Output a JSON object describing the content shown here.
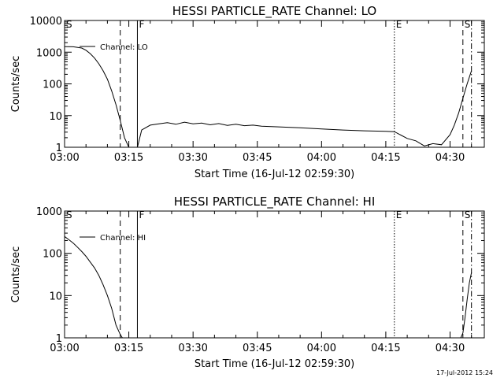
{
  "chart_data": [
    {
      "type": "line",
      "title": "HESSI PARTICLE_RATE Channel: LO",
      "xlabel": "Start Time (16-Jul-12 02:59:30)",
      "ylabel": "Counts/sec",
      "y_scale": "log",
      "xlim": [
        "03:00",
        "04:38"
      ],
      "ylim": [
        1,
        10000
      ],
      "x_ticks": [
        "03:00",
        "03:15",
        "03:30",
        "03:45",
        "04:00",
        "04:15",
        "04:30"
      ],
      "y_ticks": [
        "1",
        "10",
        "100",
        "1000",
        "10000"
      ],
      "grid": false,
      "legend": {
        "placement": "top-left",
        "entries": [
          "Channel: LO"
        ]
      },
      "markers": [
        {
          "label": "S",
          "time": "03:00",
          "style": "none"
        },
        {
          "label": "",
          "time": "03:13",
          "style": "dashed"
        },
        {
          "label": "F",
          "time": "03:17",
          "style": "solid"
        },
        {
          "label": "E",
          "time": "04:17",
          "style": "dotted"
        },
        {
          "label": "S",
          "time": "04:33",
          "style": "dashed"
        },
        {
          "label": "",
          "time": "04:35",
          "style": "dashdot"
        }
      ],
      "series": [
        {
          "x": [
            "03:00",
            "03:02",
            "03:04",
            "03:05",
            "03:06",
            "03:07",
            "03:08",
            "03:09",
            "03:10",
            "03:11",
            "03:12",
            "03:13",
            "03:14",
            "03:15",
            "03:16",
            "03:17",
            "03:18",
            "03:20",
            "03:22",
            "03:24",
            "03:26",
            "03:28",
            "03:30",
            "03:32",
            "03:34",
            "03:36",
            "03:38",
            "03:40",
            "03:42",
            "03:44",
            "03:46",
            "03:50",
            "03:55",
            "04:00",
            "04:05",
            "04:10",
            "04:15",
            "04:17",
            "04:20",
            "04:22",
            "04:24",
            "04:26",
            "04:28",
            "04:30",
            "04:31",
            "04:32",
            "04:33",
            "04:34",
            "04:35"
          ],
          "y": [
            1500,
            1480,
            1350,
            1150,
            900,
            650,
            430,
            260,
            140,
            60,
            22,
            7,
            2,
            1,
            1,
            1,
            3.5,
            5,
            5.5,
            6,
            5.3,
            6.2,
            5.5,
            5.8,
            5.1,
            5.6,
            4.9,
            5.3,
            4.8,
            5,
            4.6,
            4.4,
            4.1,
            3.8,
            3.5,
            3.3,
            3.2,
            3.1,
            1.9,
            1.6,
            1.1,
            1.3,
            1.2,
            2.5,
            5,
            12,
            35,
            100,
            260
          ]
        }
      ]
    },
    {
      "type": "line",
      "title": "HESSI PARTICLE_RATE Channel: HI",
      "xlabel": "Start Time (16-Jul-12 02:59:30)",
      "ylabel": "Counts/sec",
      "y_scale": "log",
      "xlim": [
        "03:00",
        "04:38"
      ],
      "ylim": [
        1,
        1000
      ],
      "x_ticks": [
        "03:00",
        "03:15",
        "03:30",
        "03:45",
        "04:00",
        "04:15",
        "04:30"
      ],
      "y_ticks": [
        "1",
        "10",
        "100",
        "1000"
      ],
      "grid": false,
      "legend": {
        "placement": "top-left",
        "entries": [
          "Channel: HI"
        ]
      },
      "markers": [
        {
          "label": "S",
          "time": "03:00",
          "style": "none"
        },
        {
          "label": "",
          "time": "03:13",
          "style": "dashed"
        },
        {
          "label": "F",
          "time": "03:17",
          "style": "solid"
        },
        {
          "label": "E",
          "time": "04:17",
          "style": "dotted"
        },
        {
          "label": "S",
          "time": "04:33",
          "style": "dashed"
        },
        {
          "label": "",
          "time": "04:35",
          "style": "dashdot"
        }
      ],
      "series": [
        {
          "x": [
            "03:00",
            "03:01",
            "03:02",
            "03:03",
            "03:04",
            "03:05",
            "03:06",
            "03:07",
            "03:08",
            "03:09",
            "03:10",
            "03:11",
            "03:12",
            "03:13",
            "03:13.5",
            "04:32.5",
            "04:33",
            "04:33.5",
            "04:34",
            "04:34.5",
            "04:35"
          ],
          "y": [
            250,
            210,
            175,
            140,
            110,
            85,
            62,
            45,
            30,
            18,
            10,
            5,
            2,
            1.2,
            1,
            1,
            1.3,
            3,
            8,
            20,
            35
          ]
        }
      ]
    }
  ],
  "footer": {
    "timestamp": "17-Jul-2012 15:24"
  }
}
